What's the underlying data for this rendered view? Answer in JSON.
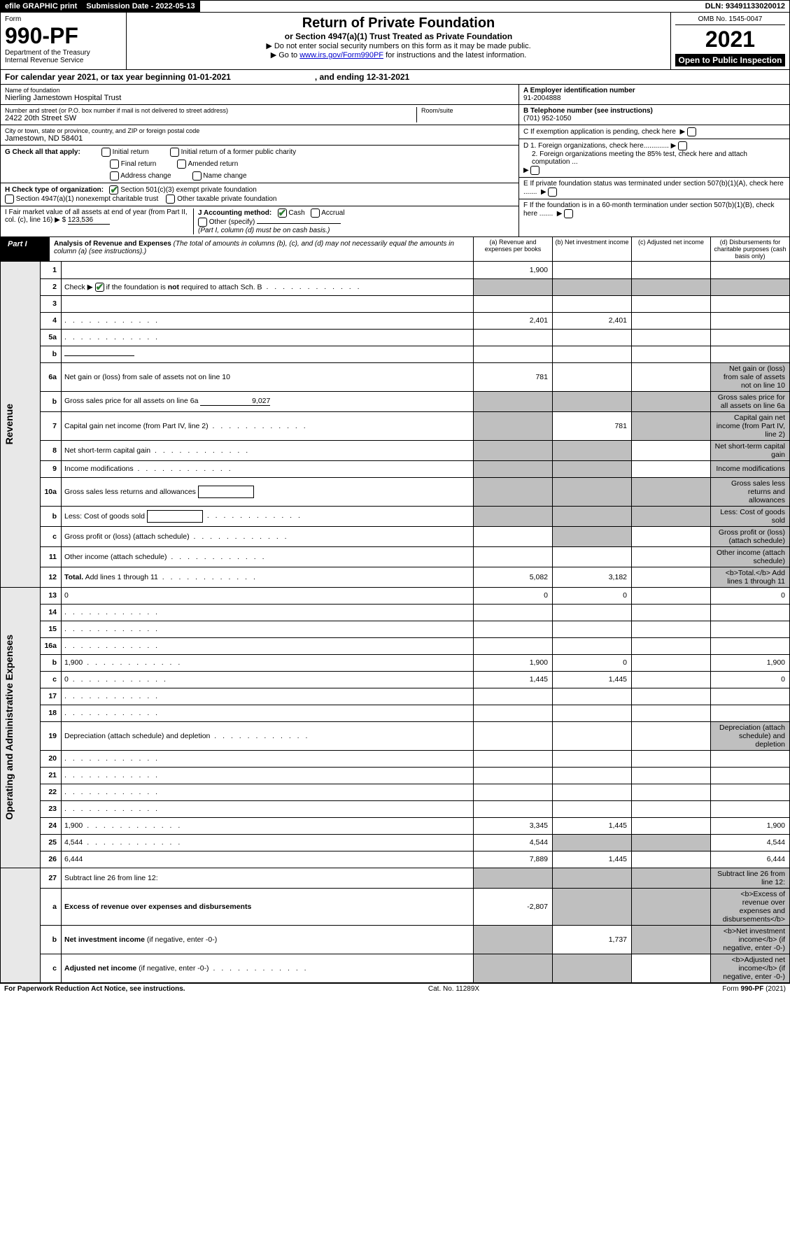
{
  "topbar": {
    "efile": "efile GRAPHIC print",
    "submission_label": "Submission Date - 2022-05-13",
    "dln": "DLN: 93491133020012"
  },
  "header": {
    "form_label": "Form",
    "form_number": "990-PF",
    "dept": "Department of the Treasury",
    "irs": "Internal Revenue Service",
    "title": "Return of Private Foundation",
    "subtitle": "or Section 4947(a)(1) Trust Treated as Private Foundation",
    "instr1": "▶ Do not enter social security numbers on this form as it may be made public.",
    "instr2_pre": "▶ Go to ",
    "instr2_link": "www.irs.gov/Form990PF",
    "instr2_post": " for instructions and the latest information.",
    "omb": "OMB No. 1545-0047",
    "year": "2021",
    "open": "Open to Public Inspection"
  },
  "cal_year": {
    "text": "For calendar year 2021, or tax year beginning 01-01-2021",
    "ending": ", and ending 12-31-2021"
  },
  "info": {
    "name_label": "Name of foundation",
    "name": "Nierling Jamestown Hospital Trust",
    "addr_label": "Number and street (or P.O. box number if mail is not delivered to street address)",
    "addr": "2422 20th Street SW",
    "room_label": "Room/suite",
    "city_label": "City or town, state or province, country, and ZIP or foreign postal code",
    "city": "Jamestown, ND  58401",
    "ein_label": "A Employer identification number",
    "ein": "91-2004888",
    "tel_label": "B Telephone number (see instructions)",
    "tel": "(701) 952-1050",
    "c_label": "C If exemption application is pending, check here",
    "d1_label": "D 1. Foreign organizations, check here.............",
    "d2_label": "2. Foreign organizations meeting the 85% test, check here and attach computation ...",
    "e_label": "E  If private foundation status was terminated under section 507(b)(1)(A), check here .......",
    "f_label": "F  If the foundation is in a 60-month termination under section 507(b)(1)(B), check here ......."
  },
  "g": {
    "label": "G Check all that apply:",
    "initial": "Initial return",
    "initial_former": "Initial return of a former public charity",
    "final": "Final return",
    "amended": "Amended return",
    "addr_change": "Address change",
    "name_change": "Name change"
  },
  "h": {
    "label": "H Check type of organization:",
    "s501c3": "Section 501(c)(3) exempt private foundation",
    "s4947": "Section 4947(a)(1) nonexempt charitable trust",
    "other_tax": "Other taxable private foundation"
  },
  "i": {
    "label": "I Fair market value of all assets at end of year (from Part II, col. (c), line 16) ▶ $ ",
    "value": "123,536"
  },
  "j": {
    "label": "J Accounting method:",
    "cash": "Cash",
    "accrual": "Accrual",
    "other": "Other (specify)",
    "note": "(Part I, column (d) must be on cash basis.)"
  },
  "part1": {
    "label": "Part I",
    "title": "Analysis of Revenue and Expenses",
    "note": " (The total of amounts in columns (b), (c), and (d) may not necessarily equal the amounts in column (a) (see instructions).)",
    "col_a": "(a)  Revenue and expenses per books",
    "col_b": "(b)  Net investment income",
    "col_c": "(c)  Adjusted net income",
    "col_d": "(d)  Disbursements for charitable purposes (cash basis only)"
  },
  "side": {
    "revenue": "Revenue",
    "expenses": "Operating and Administrative Expenses"
  },
  "rows": [
    {
      "n": "1",
      "d": "",
      "a": "1,900",
      "b": "",
      "c": "",
      "greyD": false
    },
    {
      "n": "2",
      "d": "Check ▶ [✔] if the foundation is <b>not</b> required to attach Sch. B",
      "dots": true,
      "noVals": true
    },
    {
      "n": "3",
      "d": "",
      "a": "",
      "b": "",
      "c": ""
    },
    {
      "n": "4",
      "d": "",
      "dots": true,
      "a": "2,401",
      "b": "2,401",
      "c": ""
    },
    {
      "n": "5a",
      "d": "",
      "dots": true,
      "a": "",
      "b": "",
      "c": ""
    },
    {
      "n": "b",
      "d": "",
      "field": true,
      "a": "",
      "b": "",
      "c": ""
    },
    {
      "n": "6a",
      "d": "Net gain or (loss) from sale of assets not on line 10",
      "a": "781",
      "b": "",
      "c": "",
      "greyD": true,
      "greyC": false
    },
    {
      "n": "b",
      "d": "Gross sales price for all assets on line 6a",
      "field": true,
      "fieldVal": "9,027",
      "greyA": true,
      "greyB": true,
      "greyC": true,
      "greyD": true
    },
    {
      "n": "7",
      "d": "Capital gain net income (from Part IV, line 2)",
      "dots": true,
      "greyA": true,
      "b": "781",
      "greyC": true,
      "greyD": true
    },
    {
      "n": "8",
      "d": "Net short-term capital gain",
      "dots": true,
      "greyA": true,
      "greyB": true,
      "c": "",
      "greyD": true
    },
    {
      "n": "9",
      "d": "Income modifications",
      "dots": true,
      "greyA": true,
      "greyB": true,
      "c": "",
      "greyD": true
    },
    {
      "n": "10a",
      "d": "Gross sales less returns and allowances",
      "box": true,
      "greyA": true,
      "greyB": true,
      "greyC": true,
      "greyD": true
    },
    {
      "n": "b",
      "d": "Less: Cost of goods sold",
      "dots": true,
      "box": true,
      "greyA": true,
      "greyB": true,
      "greyC": true,
      "greyD": true
    },
    {
      "n": "c",
      "d": "Gross profit or (loss) (attach schedule)",
      "dots": true,
      "greyA": false,
      "greyB": true,
      "c": "",
      "greyD": true
    },
    {
      "n": "11",
      "d": "Other income (attach schedule)",
      "dots": true,
      "a": "",
      "b": "",
      "c": "",
      "greyD": true
    },
    {
      "n": "12",
      "d": "<b>Total.</b> Add lines 1 through 11",
      "dots": true,
      "a": "5,082",
      "b": "3,182",
      "c": "",
      "greyD": true
    },
    {
      "n": "13",
      "d": "0",
      "a": "0",
      "b": "0",
      "c": "",
      "section": "exp"
    },
    {
      "n": "14",
      "d": "",
      "dots": true,
      "a": "",
      "b": "",
      "c": ""
    },
    {
      "n": "15",
      "d": "",
      "dots": true,
      "a": "",
      "b": "",
      "c": ""
    },
    {
      "n": "16a",
      "d": "",
      "dots": true,
      "a": "",
      "b": "",
      "c": ""
    },
    {
      "n": "b",
      "d": "1,900",
      "dots": true,
      "a": "1,900",
      "b": "0",
      "c": ""
    },
    {
      "n": "c",
      "d": "0",
      "dots": true,
      "a": "1,445",
      "b": "1,445",
      "c": ""
    },
    {
      "n": "17",
      "d": "",
      "dots": true,
      "a": "",
      "b": "",
      "c": ""
    },
    {
      "n": "18",
      "d": "",
      "dots": true,
      "a": "",
      "b": "",
      "c": ""
    },
    {
      "n": "19",
      "d": "Depreciation (attach schedule) and depletion",
      "dots": true,
      "a": "",
      "b": "",
      "c": "",
      "greyD": true
    },
    {
      "n": "20",
      "d": "",
      "dots": true,
      "a": "",
      "b": "",
      "c": ""
    },
    {
      "n": "21",
      "d": "",
      "dots": true,
      "a": "",
      "b": "",
      "c": ""
    },
    {
      "n": "22",
      "d": "",
      "dots": true,
      "a": "",
      "b": "",
      "c": ""
    },
    {
      "n": "23",
      "d": "",
      "dots": true,
      "a": "",
      "b": "",
      "c": ""
    },
    {
      "n": "24",
      "d": "1,900",
      "dots": true,
      "a": "3,345",
      "b": "1,445",
      "c": ""
    },
    {
      "n": "25",
      "d": "4,544",
      "dots": true,
      "a": "4,544",
      "greyB": true,
      "greyC": true
    },
    {
      "n": "26",
      "d": "6,444",
      "a": "7,889",
      "b": "1,445",
      "c": ""
    },
    {
      "n": "27",
      "d": "Subtract line 26 from line 12:",
      "greyA": true,
      "greyB": true,
      "greyC": true,
      "greyD": true,
      "section": "none"
    },
    {
      "n": "a",
      "d": "<b>Excess of revenue over expenses and disbursements</b>",
      "a": "-2,807",
      "greyB": true,
      "greyC": true,
      "greyD": true
    },
    {
      "n": "b",
      "d": "<b>Net investment income</b> (if negative, enter -0-)",
      "greyA": true,
      "b": "1,737",
      "greyC": true,
      "greyD": true
    },
    {
      "n": "c",
      "d": "<b>Adjusted net income</b> (if negative, enter -0-)",
      "dots": true,
      "greyA": true,
      "greyB": true,
      "c": "",
      "greyD": true
    }
  ],
  "footer": {
    "left": "For Paperwork Reduction Act Notice, see instructions.",
    "center": "Cat. No. 11289X",
    "right": "Form 990-PF (2021)"
  }
}
